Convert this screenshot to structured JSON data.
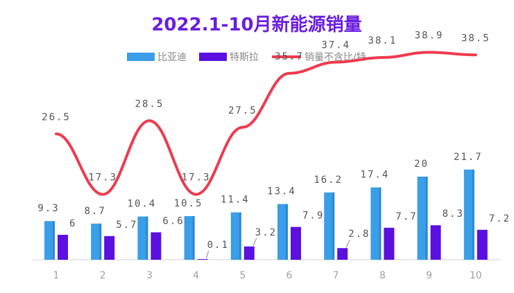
{
  "chart_data": {
    "type": "bar",
    "title": "2022.1-10月新能源销量",
    "categories": [
      "1",
      "2",
      "3",
      "4",
      "5",
      "6",
      "7",
      "8",
      "9",
      "10"
    ],
    "series": [
      {
        "name": "比亚迪",
        "kind": "bar",
        "color": "#3a9ee8",
        "values": [
          9.3,
          8.7,
          10.4,
          10.5,
          11.4,
          13.4,
          16.2,
          17.4,
          20,
          21.7
        ],
        "labels": [
          "9.3",
          "8.7",
          "10.4",
          "10.5",
          "11.4",
          "13.4",
          "16.2",
          "17.4",
          "20",
          "21.7"
        ]
      },
      {
        "name": "特斯拉",
        "kind": "bar",
        "color": "#5b10e0",
        "values": [
          6,
          5.7,
          6.6,
          0.1,
          3.2,
          7.9,
          2.8,
          7.7,
          8.3,
          7.2
        ],
        "labels": [
          "6",
          "5.7",
          "6.6",
          "0.1",
          "3.2",
          "7.9",
          "2.8",
          "7.7",
          "8.3",
          "7.2"
        ]
      },
      {
        "name": "销量不含比/特",
        "kind": "line",
        "color": "#ee3b4e",
        "values": [
          26.5,
          17.3,
          28.5,
          17.3,
          27.5,
          35.7,
          37.4,
          38.1,
          38.9,
          38.5
        ],
        "labels": [
          "26.5",
          "17.3",
          "28.5",
          "17.3",
          "27.5",
          "35.7",
          "37.4",
          "38.1",
          "38.9",
          "38.5"
        ]
      }
    ],
    "legend_position": "top-center",
    "grid": false,
    "ylim": [
      0,
      40
    ],
    "title_color": "#6a1ee0",
    "label_color": "#555555",
    "axis_label_color": "#a0a0a0",
    "axis_color": "#d0d0d0"
  }
}
